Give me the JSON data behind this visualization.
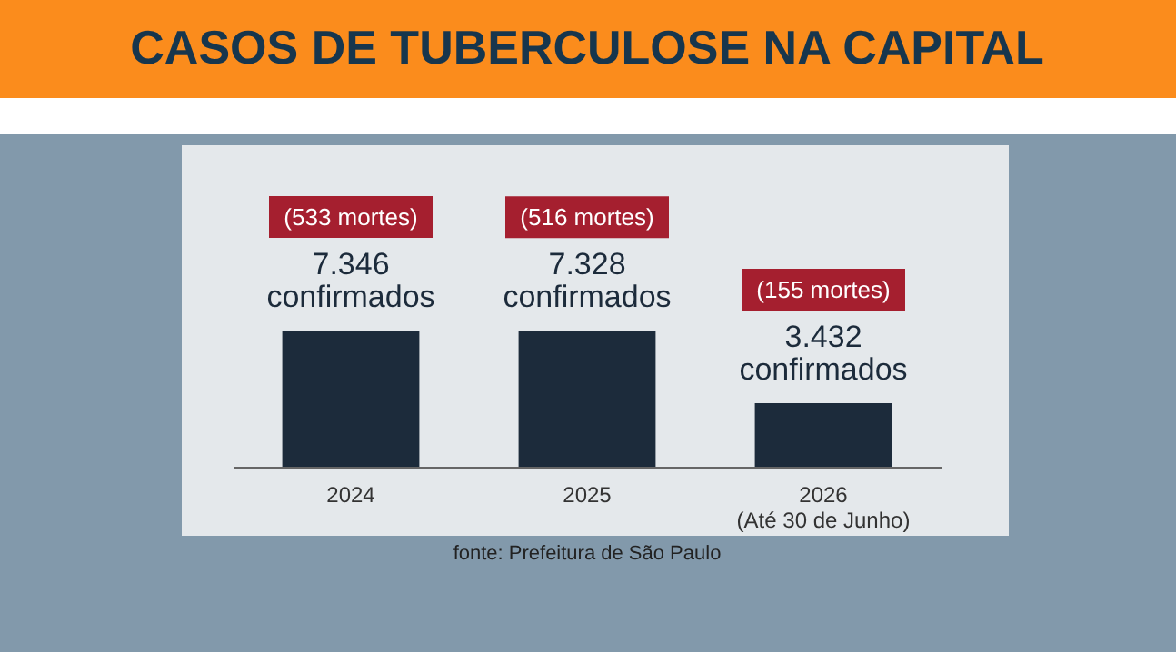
{
  "chart_data": {
    "type": "bar",
    "title": "CASOS DE TUBERCULOSE NA CAPITAL",
    "categories": [
      "2024",
      "2025",
      "2026\n(Até 30 de Junho)"
    ],
    "values": [
      7346,
      7328,
      3432
    ],
    "value_labels": [
      "7.346 confirmados",
      "7.328 confirmados",
      "3.432 confirmados"
    ],
    "color": "#1c2b3b",
    "annotations": [
      "(533 mortes)",
      "(516 mortes)",
      "(155 mortes)",
      "fonte: Prefeitura de São Paulo"
    ],
    "grid": false
  }
}
